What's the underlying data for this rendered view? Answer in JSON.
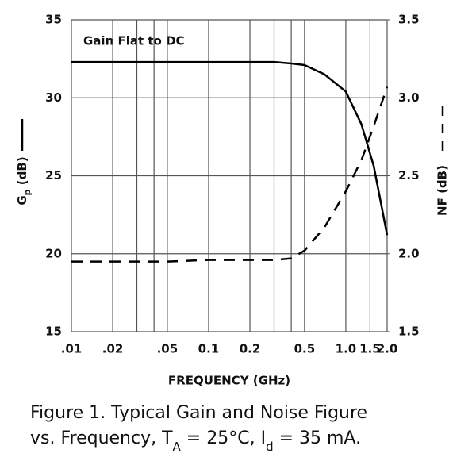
{
  "chart_data": {
    "type": "line",
    "annotation": "Gain Flat to DC",
    "xlabel": "FREQUENCY (GHz)",
    "ylabel": {
      "main": "G",
      "sub": "p",
      "rest": " (dB)"
    },
    "y2label": "NF (dB)",
    "caption": {
      "line1": "Figure 1.  Typical Gain and Noise Figure",
      "line2": [
        "vs. Frequency, T",
        "A",
        " = 25°C, I",
        "d",
        " = 35 mA."
      ]
    },
    "x": [
      0.01,
      0.02,
      0.05,
      0.1,
      0.2,
      0.3,
      0.4,
      0.5,
      0.7,
      1.0,
      1.3,
      1.6,
      2.0
    ],
    "series": [
      {
        "name": "Gp",
        "color": "#000000",
        "dash": false,
        "values": [
          32.3,
          32.3,
          32.3,
          32.3,
          32.3,
          32.3,
          32.2,
          32.1,
          31.5,
          30.4,
          28.3,
          25.6,
          21.2
        ]
      },
      {
        "name": "NF",
        "color": "#000000",
        "dash": true,
        "axis": "y2",
        "values": [
          1.95,
          1.95,
          1.95,
          1.96,
          1.96,
          1.96,
          1.97,
          2.02,
          2.17,
          2.4,
          2.6,
          2.82,
          3.07
        ]
      }
    ],
    "xscale": "log",
    "xlim": [
      0.01,
      2.0
    ],
    "xticks": [
      {
        "value": 0.01,
        "label": ".01"
      },
      {
        "value": 0.02,
        "label": ".02"
      },
      {
        "value": 0.05,
        "label": ".05"
      },
      0.1,
      0.2,
      0.5,
      {
        "value": 1.0,
        "label": "1.0"
      },
      1.5,
      {
        "value": 2.0,
        "label": "2.0"
      }
    ],
    "xgrid": [
      0.03,
      0.04,
      0.3,
      0.4
    ],
    "ylim": [
      15,
      35
    ],
    "yticks": [
      15,
      20,
      25,
      30,
      35
    ],
    "y2lim": [
      1.5,
      3.5
    ],
    "y2ticks": [
      1.5,
      {
        "value": 2.0,
        "label": "2.0"
      },
      2.5,
      {
        "value": 3.0,
        "label": "3.0"
      },
      3.5
    ],
    "grid": true
  }
}
